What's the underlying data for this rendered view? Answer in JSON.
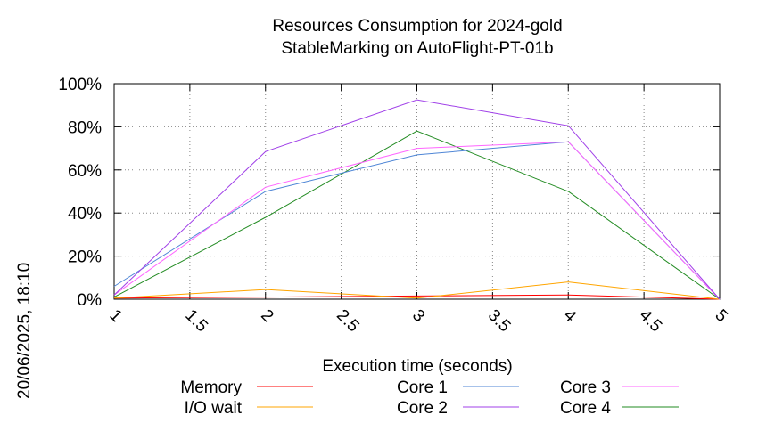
{
  "chart_data": {
    "type": "line",
    "title": "Resources Consumption for 2024-gold",
    "subtitle": "StableMarking on AutoFlight-PT-01b",
    "xlabel": "Execution time (seconds)",
    "ylabel": "",
    "timestamp": "20/06/2025, 18:10",
    "x": [
      1,
      2,
      3,
      4,
      5
    ],
    "xlim": [
      1,
      5
    ],
    "ylim": [
      0,
      100
    ],
    "x_ticks": [
      "1",
      "1.5",
      "2",
      "2.5",
      "3",
      "3.5",
      "4",
      "4.5",
      "5"
    ],
    "y_ticks": [
      "0%",
      "20%",
      "40%",
      "60%",
      "80%",
      "100%"
    ],
    "grid": true,
    "legend_position": "bottom",
    "series": [
      {
        "name": "Memory",
        "color": "#ff0000",
        "values": [
          0.5,
          1,
          1.5,
          2,
          0
        ]
      },
      {
        "name": "I/O wait",
        "color": "#ffa500",
        "values": [
          0.5,
          4.5,
          0.5,
          8,
          0
        ]
      },
      {
        "name": "Core 1",
        "color": "#4f86d6",
        "values": [
          6,
          50,
          67,
          73,
          0
        ]
      },
      {
        "name": "Core 2",
        "color": "#a040e8",
        "values": [
          2,
          68.5,
          92.5,
          80.5,
          0
        ]
      },
      {
        "name": "Core 3",
        "color": "#ff66ff",
        "values": [
          2,
          52,
          70,
          73,
          0
        ]
      },
      {
        "name": "Core 4",
        "color": "#228b22",
        "values": [
          1,
          38,
          78,
          50,
          0
        ]
      }
    ]
  }
}
